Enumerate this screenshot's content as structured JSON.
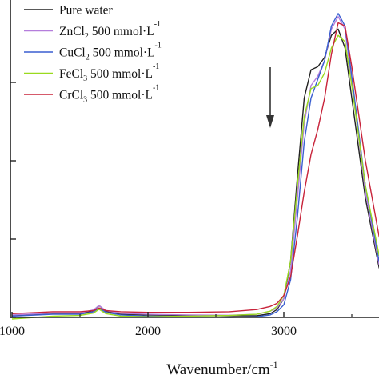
{
  "chart_data": {
    "type": "line",
    "title": "",
    "xlabel": "Wavenumber/cm",
    "xlabel_sup": "-1",
    "ylabel": "",
    "xlim": [
      1000,
      3750
    ],
    "ylim": [
      0,
      1.0
    ],
    "x_ticks": [
      1000,
      2000,
      3000
    ],
    "x_tick_labels": [
      "1000",
      "2000",
      "3000"
    ],
    "y_ticks": [
      0,
      0.25,
      0.5,
      0.75
    ],
    "grid": false,
    "legend_position": "top-left",
    "annotation": "arrow-down",
    "annotation_x": 2900,
    "series": [
      {
        "name": "Pure water",
        "name_parts": [
          {
            "t": "Pure water"
          }
        ],
        "color": "#222222",
        "points": [
          [
            1000,
            0.005
          ],
          [
            1300,
            0.012
          ],
          [
            1500,
            0.012
          ],
          [
            1600,
            0.022
          ],
          [
            1640,
            0.038
          ],
          [
            1690,
            0.02
          ],
          [
            1800,
            0.01
          ],
          [
            2000,
            0.008
          ],
          [
            2300,
            0.006
          ],
          [
            2600,
            0.005
          ],
          [
            2800,
            0.005
          ],
          [
            2900,
            0.012
          ],
          [
            2950,
            0.025
          ],
          [
            3000,
            0.06
          ],
          [
            3050,
            0.18
          ],
          [
            3100,
            0.45
          ],
          [
            3150,
            0.7
          ],
          [
            3200,
            0.79
          ],
          [
            3250,
            0.8
          ],
          [
            3300,
            0.83
          ],
          [
            3350,
            0.9
          ],
          [
            3400,
            0.92
          ],
          [
            3450,
            0.86
          ],
          [
            3500,
            0.7
          ],
          [
            3600,
            0.38
          ],
          [
            3700,
            0.16
          ],
          [
            3750,
            0.1
          ]
        ]
      },
      {
        "name": "ZnCl2 500 mmol·L-1",
        "name_parts": [
          {
            "t": "ZnCl"
          },
          {
            "t": "2",
            "sub": true
          },
          {
            "t": " 500 mmol·L"
          },
          {
            "t": "-1",
            "sup": true
          }
        ],
        "color": "#b57edc",
        "points": [
          [
            1000,
            0.008
          ],
          [
            1300,
            0.014
          ],
          [
            1500,
            0.014
          ],
          [
            1600,
            0.024
          ],
          [
            1640,
            0.038
          ],
          [
            1690,
            0.022
          ],
          [
            1800,
            0.013
          ],
          [
            2000,
            0.01
          ],
          [
            2300,
            0.008
          ],
          [
            2600,
            0.007
          ],
          [
            2800,
            0.01
          ],
          [
            2900,
            0.02
          ],
          [
            2950,
            0.03
          ],
          [
            3000,
            0.06
          ],
          [
            3050,
            0.15
          ],
          [
            3100,
            0.38
          ],
          [
            3150,
            0.62
          ],
          [
            3200,
            0.74
          ],
          [
            3250,
            0.77
          ],
          [
            3300,
            0.82
          ],
          [
            3350,
            0.92
          ],
          [
            3400,
            0.96
          ],
          [
            3450,
            0.92
          ],
          [
            3500,
            0.75
          ],
          [
            3600,
            0.4
          ],
          [
            3700,
            0.17
          ],
          [
            3750,
            0.11
          ]
        ]
      },
      {
        "name": "CuCl2 500 mmol·L-1",
        "name_parts": [
          {
            "t": "CuCl"
          },
          {
            "t": "2",
            "sub": true
          },
          {
            "t": " 500 mmol·L"
          },
          {
            "t": "-1",
            "sup": true
          }
        ],
        "color": "#3a5fd0",
        "points": [
          [
            1000,
            0.004
          ],
          [
            1300,
            0.01
          ],
          [
            1500,
            0.01
          ],
          [
            1600,
            0.018
          ],
          [
            1640,
            0.03
          ],
          [
            1690,
            0.016
          ],
          [
            1800,
            0.008
          ],
          [
            2000,
            0.004
          ],
          [
            2300,
            0.002
          ],
          [
            2600,
            0.0
          ],
          [
            2800,
            0.002
          ],
          [
            2900,
            0.008
          ],
          [
            2950,
            0.018
          ],
          [
            3000,
            0.04
          ],
          [
            3050,
            0.12
          ],
          [
            3100,
            0.32
          ],
          [
            3150,
            0.56
          ],
          [
            3200,
            0.7
          ],
          [
            3250,
            0.76
          ],
          [
            3300,
            0.82
          ],
          [
            3350,
            0.93
          ],
          [
            3400,
            0.97
          ],
          [
            3450,
            0.93
          ],
          [
            3500,
            0.77
          ],
          [
            3600,
            0.42
          ],
          [
            3700,
            0.18
          ],
          [
            3750,
            0.12
          ]
        ]
      },
      {
        "name": "FeCl3 500 mmol·L-1",
        "name_parts": [
          {
            "t": "FeCl"
          },
          {
            "t": "3",
            "sub": true
          },
          {
            "t": " 500 mmol·L"
          },
          {
            "t": "-1",
            "sup": true
          }
        ],
        "color": "#9ada1e",
        "points": [
          [
            1000,
            -0.005
          ],
          [
            1300,
            0.004
          ],
          [
            1500,
            0.006
          ],
          [
            1600,
            0.014
          ],
          [
            1640,
            0.026
          ],
          [
            1690,
            0.012
          ],
          [
            1800,
            0.004
          ],
          [
            2000,
            0.002
          ],
          [
            2300,
            0.004
          ],
          [
            2600,
            0.006
          ],
          [
            2800,
            0.01
          ],
          [
            2900,
            0.02
          ],
          [
            2950,
            0.035
          ],
          [
            3000,
            0.07
          ],
          [
            3050,
            0.18
          ],
          [
            3100,
            0.42
          ],
          [
            3150,
            0.64
          ],
          [
            3200,
            0.73
          ],
          [
            3250,
            0.74
          ],
          [
            3300,
            0.78
          ],
          [
            3350,
            0.86
          ],
          [
            3400,
            0.9
          ],
          [
            3450,
            0.88
          ],
          [
            3500,
            0.74
          ],
          [
            3600,
            0.42
          ],
          [
            3700,
            0.2
          ],
          [
            3750,
            0.14
          ]
        ]
      },
      {
        "name": "CrCl3 500 mmol·L-1",
        "name_parts": [
          {
            "t": "CrCl"
          },
          {
            "t": "3",
            "sub": true
          },
          {
            "t": " 500 mmol·L"
          },
          {
            "t": "-1",
            "sup": true
          }
        ],
        "color": "#c8233a",
        "points": [
          [
            1000,
            0.012
          ],
          [
            1300,
            0.018
          ],
          [
            1500,
            0.018
          ],
          [
            1600,
            0.022
          ],
          [
            1640,
            0.03
          ],
          [
            1690,
            0.022
          ],
          [
            1800,
            0.018
          ],
          [
            2000,
            0.016
          ],
          [
            2300,
            0.016
          ],
          [
            2600,
            0.018
          ],
          [
            2800,
            0.025
          ],
          [
            2900,
            0.035
          ],
          [
            2950,
            0.045
          ],
          [
            3000,
            0.07
          ],
          [
            3050,
            0.13
          ],
          [
            3100,
            0.26
          ],
          [
            3150,
            0.4
          ],
          [
            3200,
            0.52
          ],
          [
            3250,
            0.6
          ],
          [
            3300,
            0.7
          ],
          [
            3350,
            0.84
          ],
          [
            3400,
            0.94
          ],
          [
            3450,
            0.93
          ],
          [
            3500,
            0.8
          ],
          [
            3600,
            0.5
          ],
          [
            3700,
            0.26
          ],
          [
            3750,
            0.18
          ]
        ]
      }
    ]
  }
}
